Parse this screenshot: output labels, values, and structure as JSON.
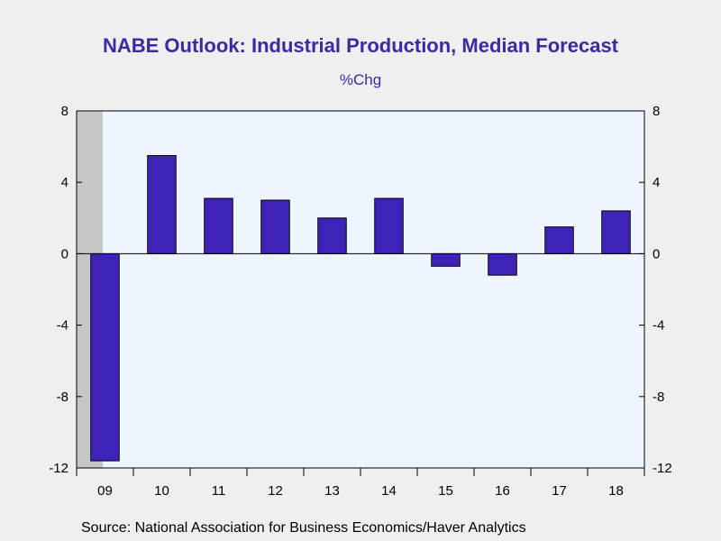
{
  "colors": {
    "title": "#3d28a8",
    "bar": "#3f22b8",
    "plot_bg": "#eef5fe",
    "recession": "#c6c6c6",
    "frame": "#000000"
  },
  "chart_data": {
    "type": "bar",
    "title": "NABE Outlook: Industrial Production, Median Forecast",
    "ylabel": "%Chg",
    "categories": [
      "09",
      "10",
      "11",
      "12",
      "13",
      "14",
      "15",
      "16",
      "17",
      "18"
    ],
    "values": [
      -11.6,
      5.5,
      3.1,
      3.0,
      2.0,
      3.1,
      -0.7,
      -1.2,
      1.5,
      2.4
    ],
    "ylim": [
      -12,
      8
    ],
    "yticks": [
      "8",
      "4",
      "0",
      "-4",
      "-8",
      "-12"
    ],
    "shaded_categories": [
      "09"
    ],
    "grid": false
  },
  "source": "Source:  National Association for Business Economics/Haver Analytics"
}
